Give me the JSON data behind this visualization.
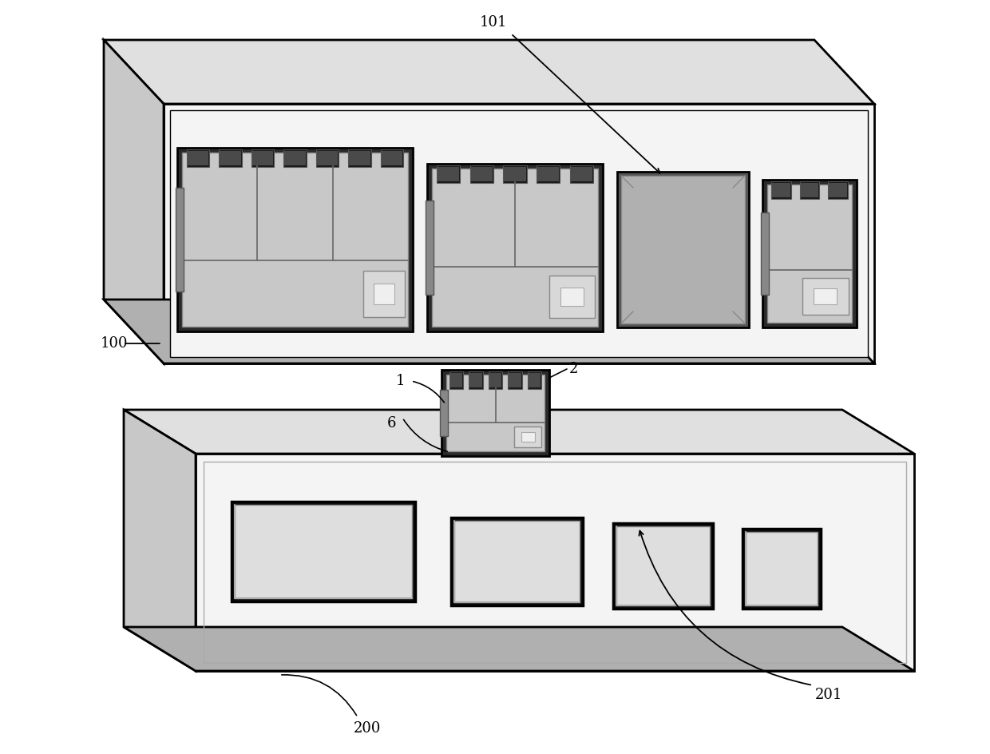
{
  "bg_color": "#ffffff",
  "lc": "#000000",
  "lw": 1.5,
  "tlw": 2.0,
  "fs": 13,
  "gray_light": "#f4f4f4",
  "gray_mid": "#e0e0e0",
  "gray_dark": "#c8c8c8",
  "gray_darker": "#b0b0b0",
  "switch_bg": "#e8e8e8",
  "switch_dark": "#2a2a2a",
  "switch_mid": "#404040",
  "switch_inner": "#d8d8d8",
  "cutout_fill": "#e5e5e5"
}
